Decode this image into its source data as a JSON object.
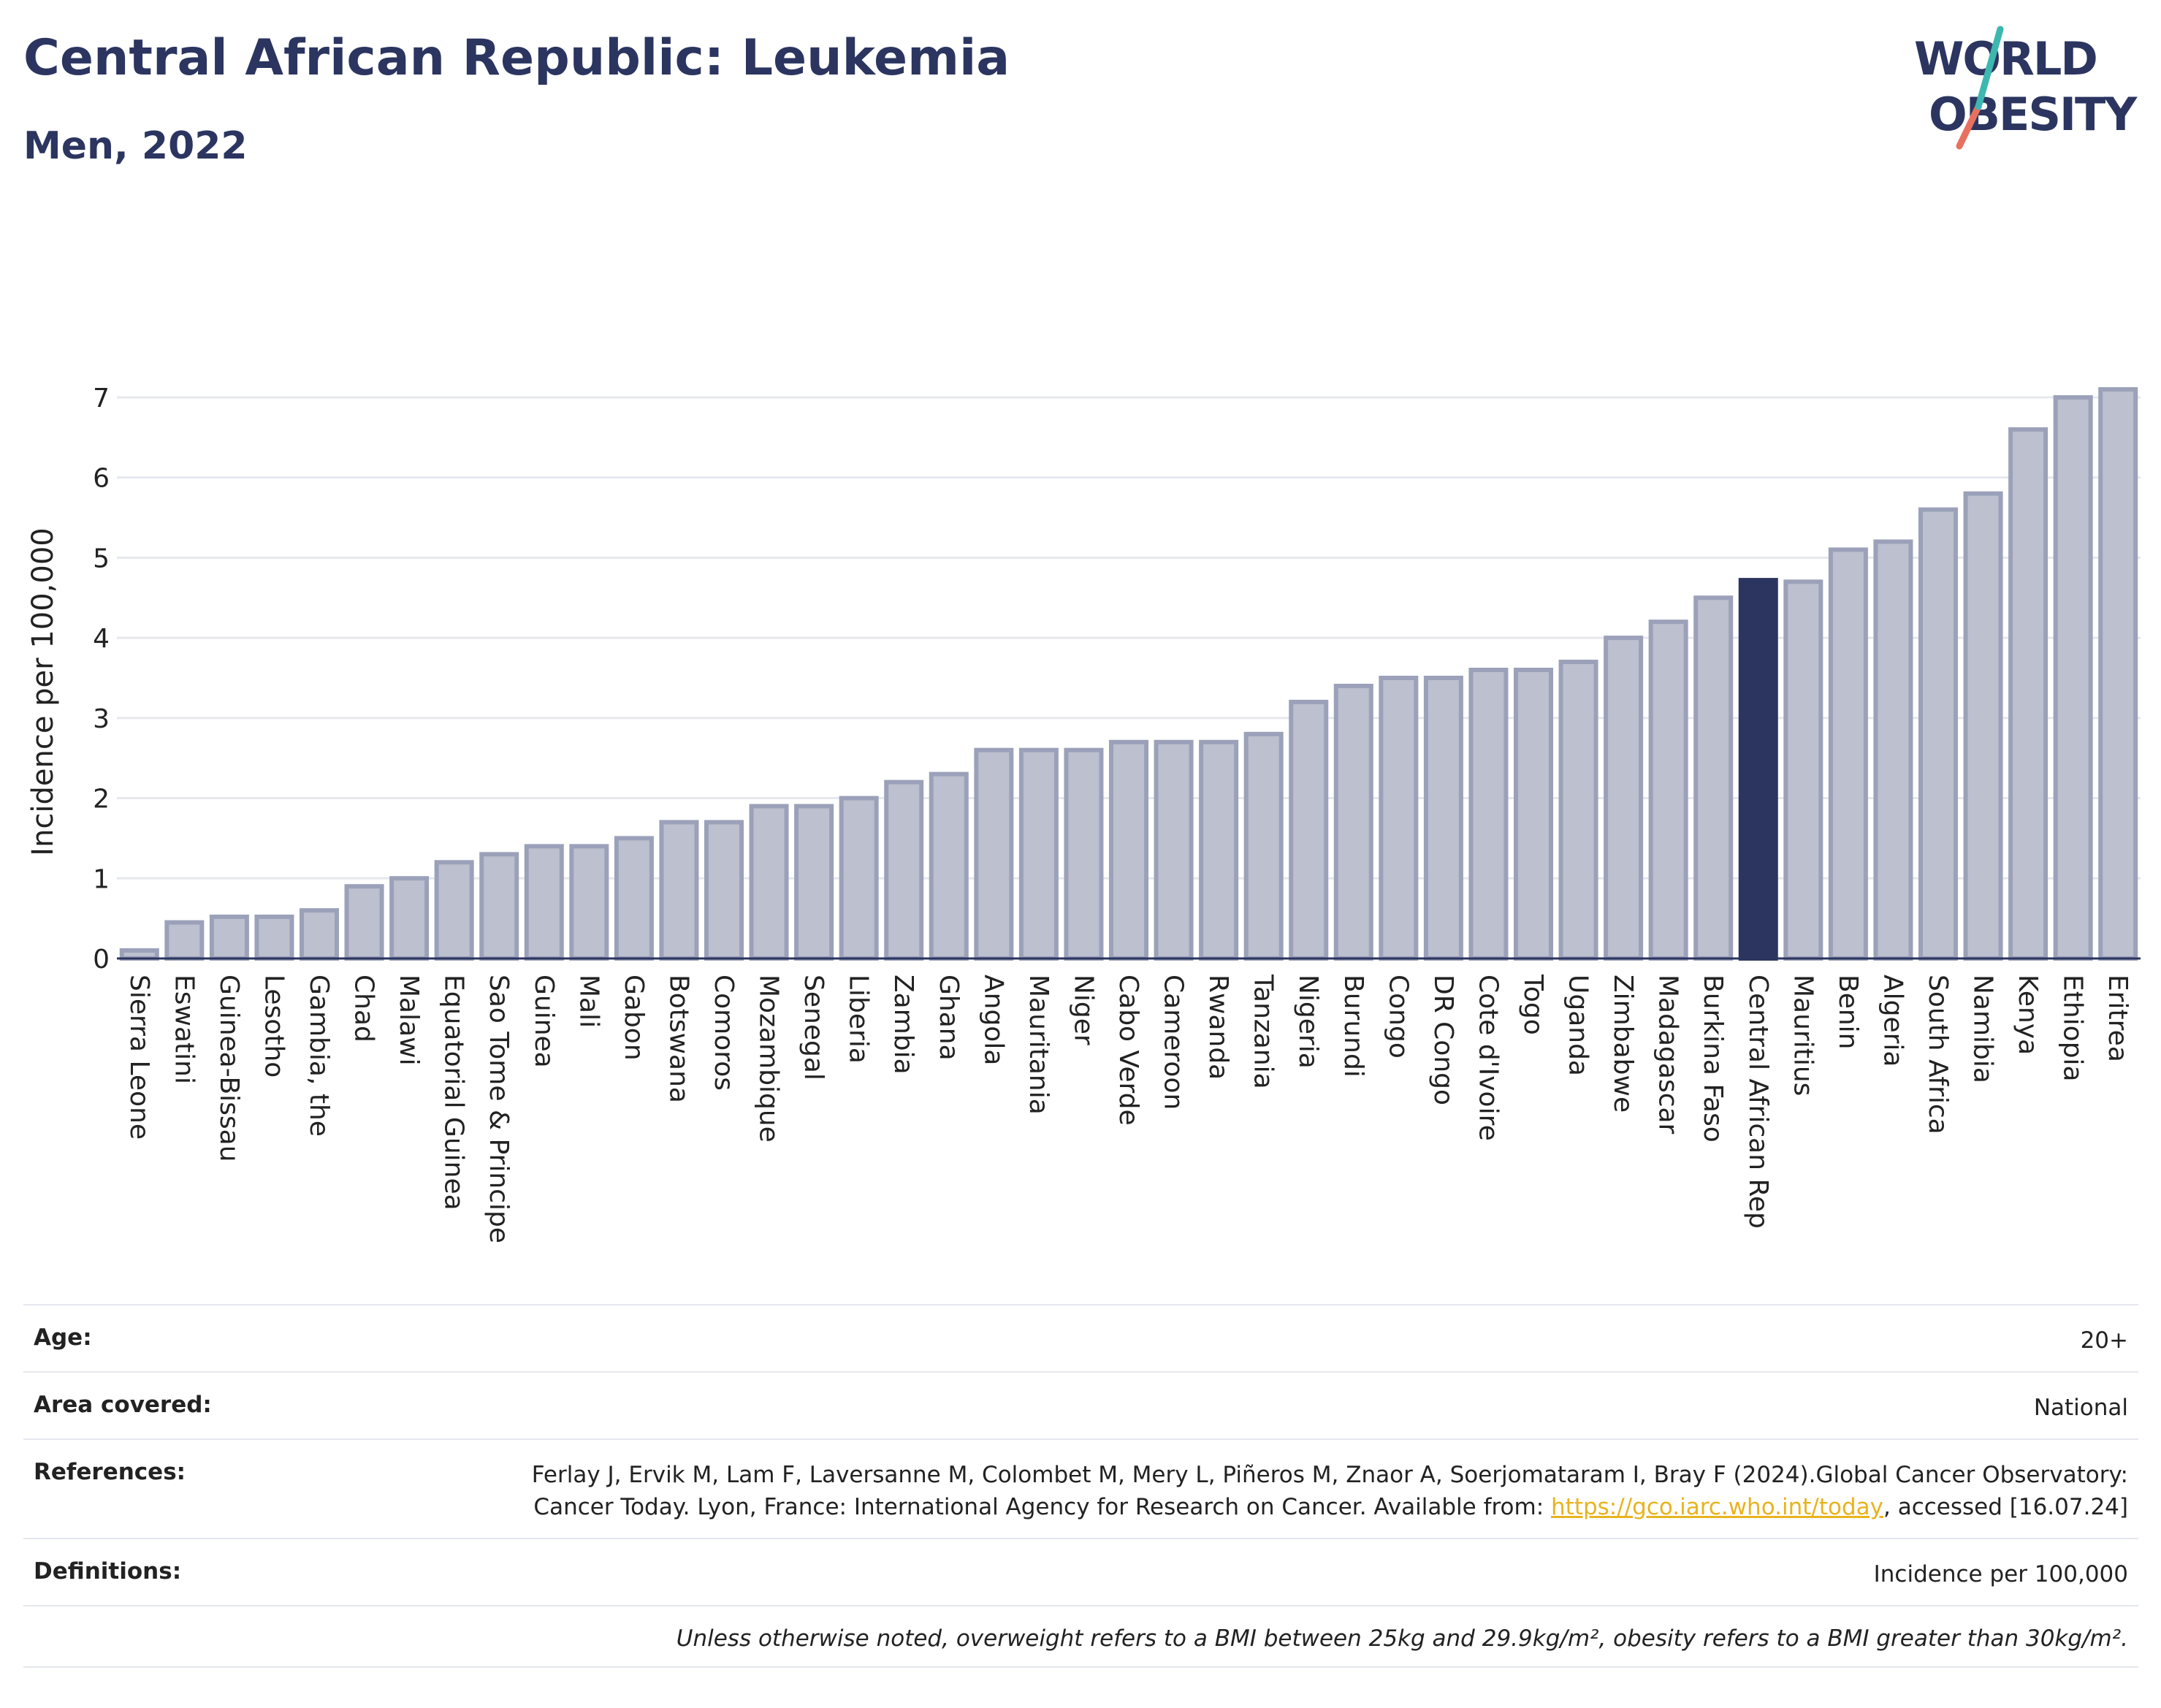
{
  "header": {
    "title": "Central African Republic: Leukemia",
    "subtitle": "Men, 2022"
  },
  "logo": {
    "line1": "WORLD",
    "line2": "OBESITY"
  },
  "colors": {
    "bar": "#bcc0cf",
    "bar_stroke": "#9ba1b9",
    "highlight": "#2b3560",
    "grid": "#e6e8ee"
  },
  "chart_data": {
    "type": "bar",
    "ylabel": "Incidence per 100,000",
    "ylim": [
      0,
      7.2
    ],
    "yticks": [
      0,
      1,
      2,
      3,
      4,
      5,
      6,
      7
    ],
    "highlight": "Central African Rep",
    "categories": [
      "Sierra Leone",
      "Eswatini",
      "Guinea-Bissau",
      "Lesotho",
      "Gambia, the",
      "Chad",
      "Malawi",
      "Equatorial Guinea",
      "Sao Tome & Principe",
      "Guinea",
      "Mali",
      "Gabon",
      "Botswana",
      "Comoros",
      "Mozambique",
      "Senegal",
      "Liberia",
      "Zambia",
      "Ghana",
      "Angola",
      "Mauritania",
      "Niger",
      "Cabo Verde",
      "Cameroon",
      "Rwanda",
      "Tanzania",
      "Nigeria",
      "Burundi",
      "Congo",
      "DR Congo",
      "Cote d'Ivoire",
      "Togo",
      "Uganda",
      "Zimbabwe",
      "Madagascar",
      "Burkina Faso",
      "Central African Rep",
      "Mauritius",
      "Benin",
      "Algeria",
      "South Africa",
      "Namibia",
      "Kenya",
      "Ethiopia",
      "Eritrea"
    ],
    "values": [
      0.1,
      0.45,
      0.52,
      0.52,
      0.6,
      0.9,
      1.0,
      1.2,
      1.3,
      1.4,
      1.4,
      1.5,
      1.7,
      1.7,
      1.9,
      1.9,
      2.0,
      2.2,
      2.3,
      2.6,
      2.6,
      2.6,
      2.7,
      2.7,
      2.7,
      2.8,
      3.2,
      3.4,
      3.5,
      3.5,
      3.6,
      3.6,
      3.7,
      4.0,
      4.2,
      4.5,
      4.72,
      4.7,
      5.1,
      5.2,
      5.6,
      5.8,
      6.6,
      7.0,
      7.1
    ]
  },
  "info": {
    "age_label": "Age:",
    "age_value": "20+",
    "area_label": "Area covered:",
    "area_value": "National",
    "references_label": "References:",
    "references_text": "Ferlay J, Ervik M, Lam F, Laversanne M, Colombet M, Mery L, Piñeros M, Znaor A, Soerjomataram I, Bray F (2024).Global Cancer Observatory: Cancer Today. Lyon, France: International Agency for Research on Cancer. Available from: ",
    "references_link": "https://gco.iarc.who.int/today",
    "references_tail": ", accessed [16.07.24]",
    "definitions_label": "Definitions:",
    "definitions_value": "Incidence per 100,000",
    "note": "Unless otherwise noted, overweight refers to a BMI between 25kg and 29.9kg/m², obesity refers to a BMI greater than 30kg/m²."
  }
}
